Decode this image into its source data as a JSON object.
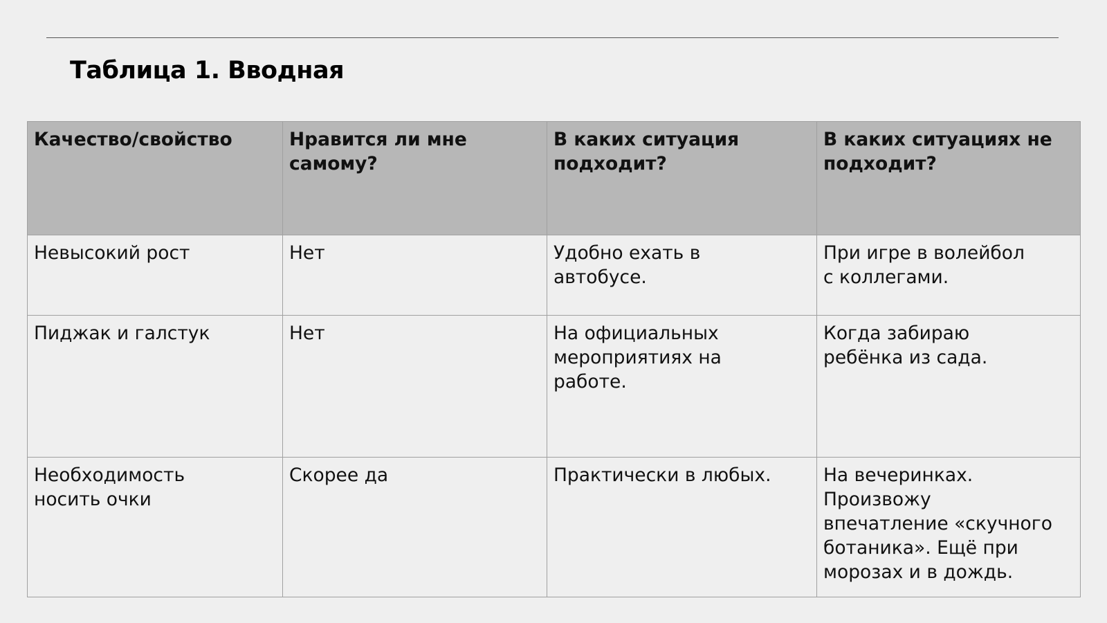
{
  "title": "Таблица 1. Вводная",
  "table": {
    "headers": [
      "Качество/свойство",
      "Нравится ли мне\nсамому?",
      "В каких ситуация\nподходит?",
      "В каких ситуациях не\nподходит?"
    ],
    "rows": [
      [
        "Невысокий рост",
        "Нет",
        "Удобно ехать в\nавтобусе.",
        "При игре в волейбол\nс коллегами."
      ],
      [
        "Пиджак и галстук",
        "Нет",
        "На официальных\nмероприятиях на\nработе.",
        "Когда забираю\nребёнка из сада."
      ],
      [
        "Необходимость\nносить очки",
        "Скорее да",
        "Практически в любых.",
        "На вечеринках.\nПроизвожу\nвпечатление «скучного\nботаника». Ещё при\nморозах и в дождь."
      ]
    ]
  },
  "colors": {
    "header_bg": "#b7b7b7",
    "page_bg": "#efefef"
  }
}
